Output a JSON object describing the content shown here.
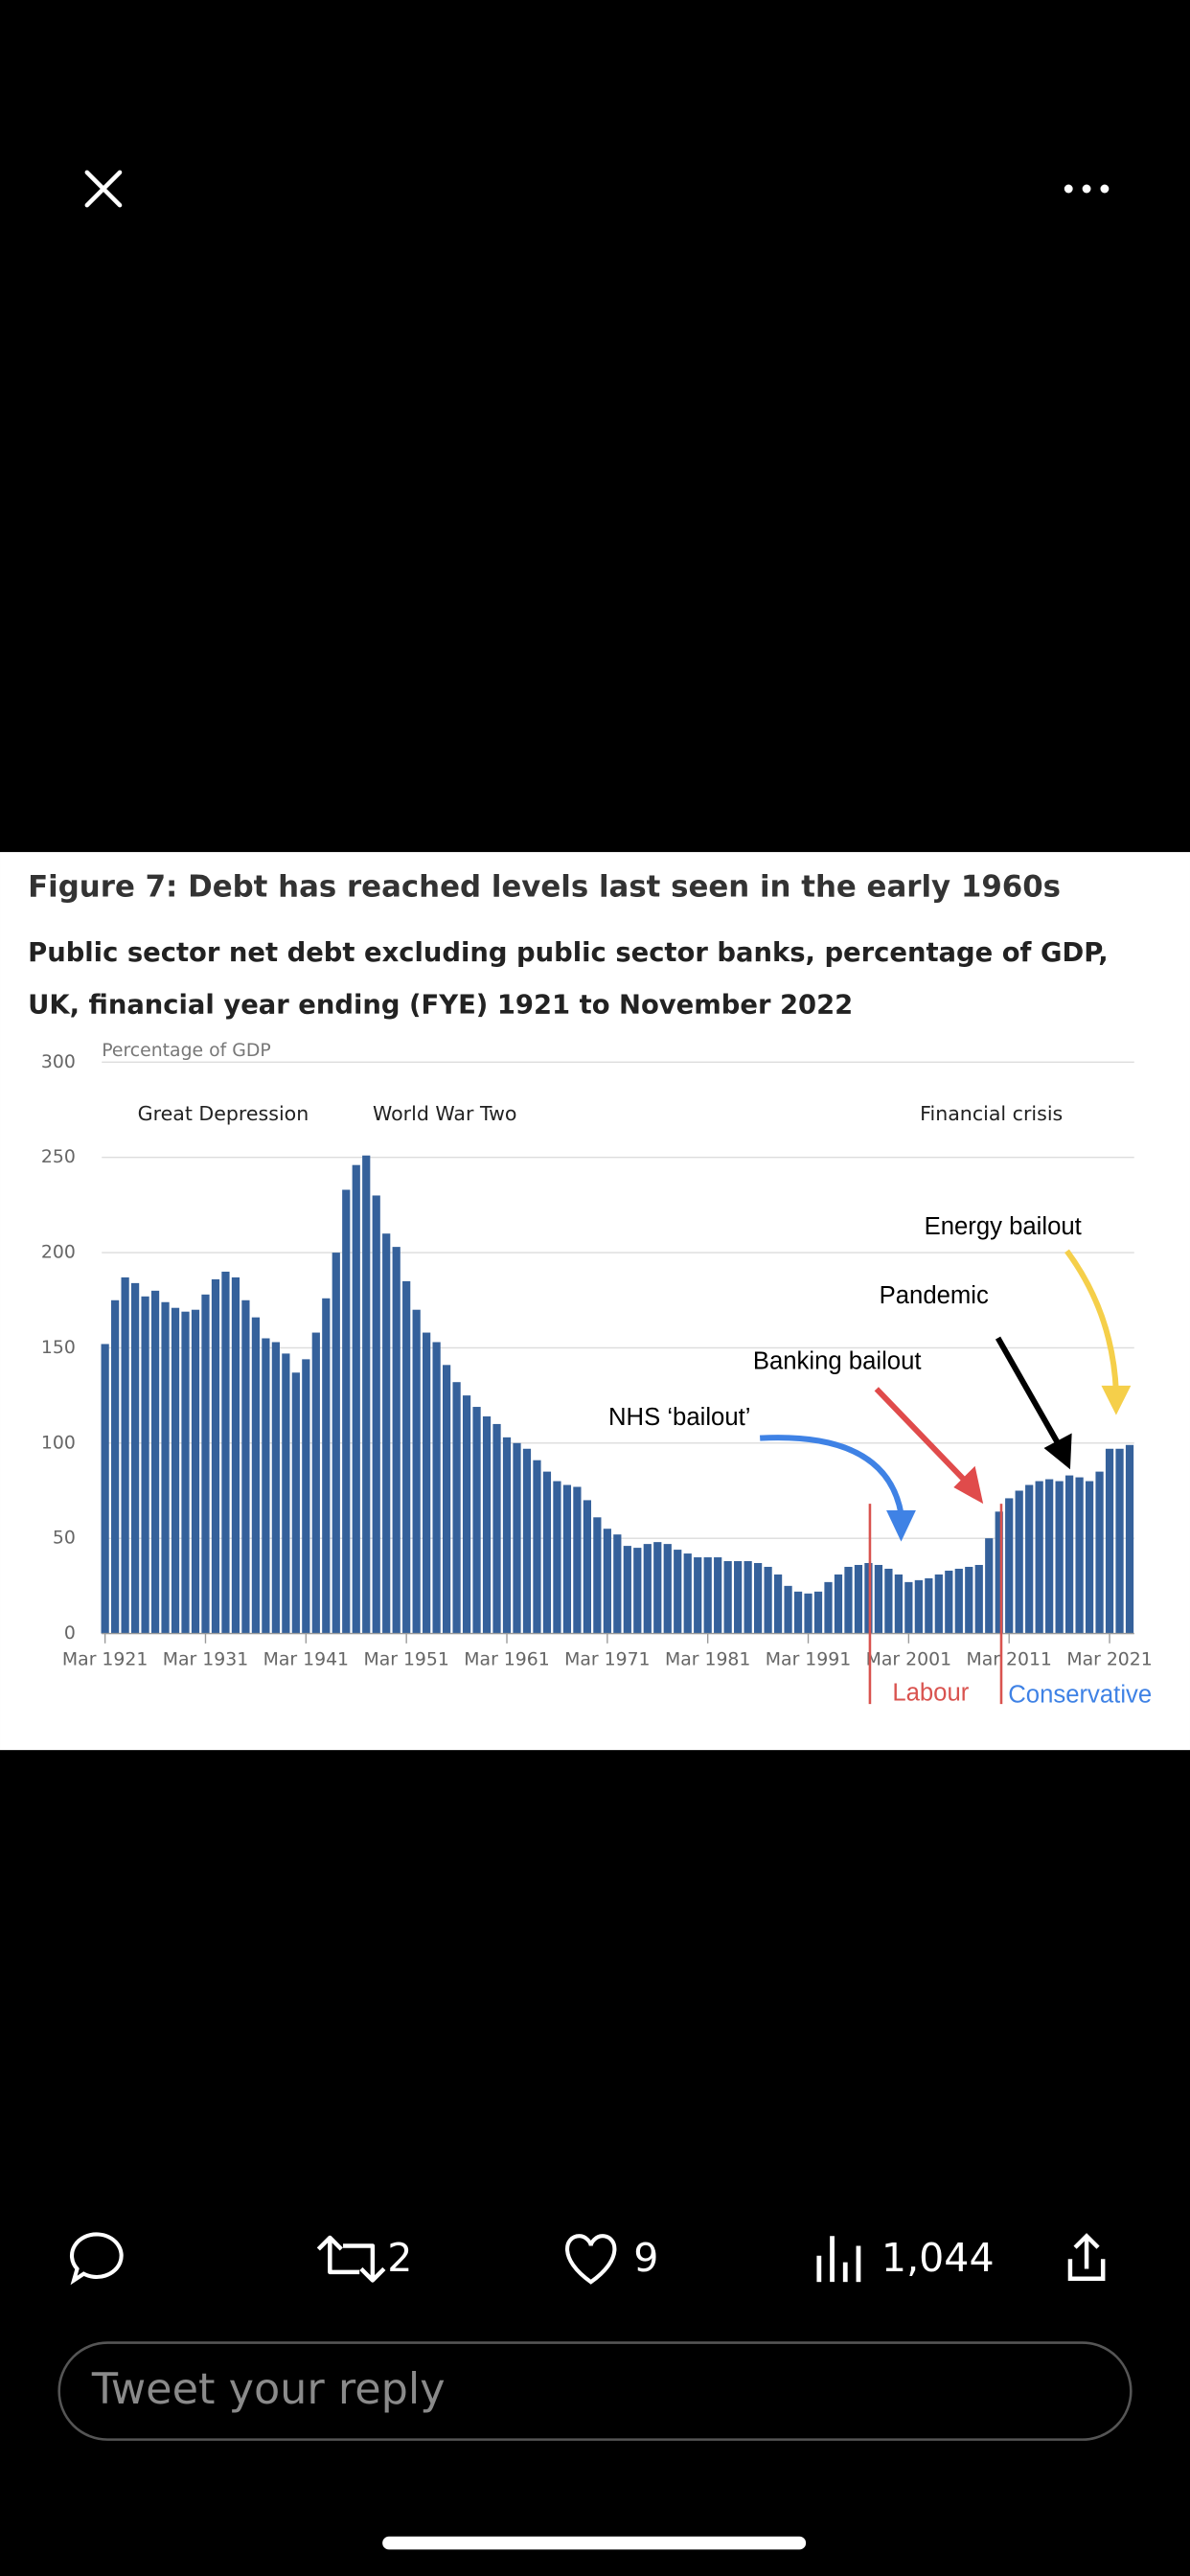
{
  "ui": {
    "reply_count": "2",
    "like_count": "9",
    "view_count": "1,044",
    "reply_placeholder": "Tweet your reply"
  },
  "chart_data": {
    "type": "bar",
    "title": "Figure 7: Debt has reached levels last seen in the early 1960s",
    "subtitle": [
      "Public sector net debt excluding public sector banks, percentage of GDP,",
      "UK, financial year ending (FYE) 1921 to November 2022"
    ],
    "y_label": "Percentage of GDP",
    "annotations": [
      "Great Depression",
      "World War Two",
      "Financial crisis",
      "Energy bailout",
      "Pandemic",
      "Banking bailout",
      "NHS ‘bailout’",
      "Labour",
      "Conservative"
    ],
    "categories": [
      "Mar 1921",
      null,
      null,
      null,
      null,
      null,
      null,
      null,
      null,
      null,
      "Mar 1931",
      null,
      null,
      null,
      null,
      null,
      null,
      null,
      null,
      null,
      "Mar 1941",
      null,
      null,
      null,
      null,
      null,
      null,
      null,
      null,
      null,
      "Mar 1951",
      null,
      null,
      null,
      null,
      null,
      null,
      null,
      null,
      null,
      "Mar 1961",
      null,
      null,
      null,
      null,
      null,
      null,
      null,
      null,
      null,
      "Mar 1971",
      null,
      null,
      null,
      null,
      null,
      null,
      null,
      null,
      null,
      "Mar 1981",
      null,
      null,
      null,
      null,
      null,
      null,
      null,
      null,
      null,
      "Mar 1991",
      null,
      null,
      null,
      null,
      null,
      null,
      null,
      null,
      null,
      "Mar 2001",
      null,
      null,
      null,
      null,
      null,
      null,
      null,
      null,
      null,
      "Mar 2011",
      null,
      null,
      null,
      null,
      null,
      null,
      null,
      null,
      null,
      "Mar 2021",
      null,
      null
    ],
    "values": [
      152,
      175,
      187,
      184,
      177,
      180,
      174,
      171,
      169,
      170,
      178,
      186,
      190,
      187,
      175,
      166,
      155,
      153,
      147,
      137,
      144,
      158,
      176,
      200,
      233,
      246,
      251,
      230,
      210,
      203,
      185,
      170,
      158,
      153,
      141,
      132,
      125,
      119,
      114,
      110,
      103,
      100,
      97,
      91,
      85,
      80,
      78,
      77,
      70,
      61,
      55,
      52,
      46,
      45,
      47,
      48,
      47,
      44,
      42,
      40,
      40,
      40,
      38,
      38,
      38,
      37,
      35,
      31,
      25,
      22,
      21,
      22,
      27,
      31,
      35,
      36,
      37,
      36,
      34,
      31,
      27,
      28,
      29,
      31,
      33,
      34,
      35,
      36,
      50,
      64,
      71,
      75,
      78,
      80,
      81,
      80,
      83,
      82,
      80,
      85,
      97,
      97,
      99
    ],
    "color": "#35619b",
    "ylim": [
      0,
      300
    ],
    "yticks": [
      0,
      50,
      100,
      150,
      200,
      250,
      300
    ],
    "grid": true
  }
}
